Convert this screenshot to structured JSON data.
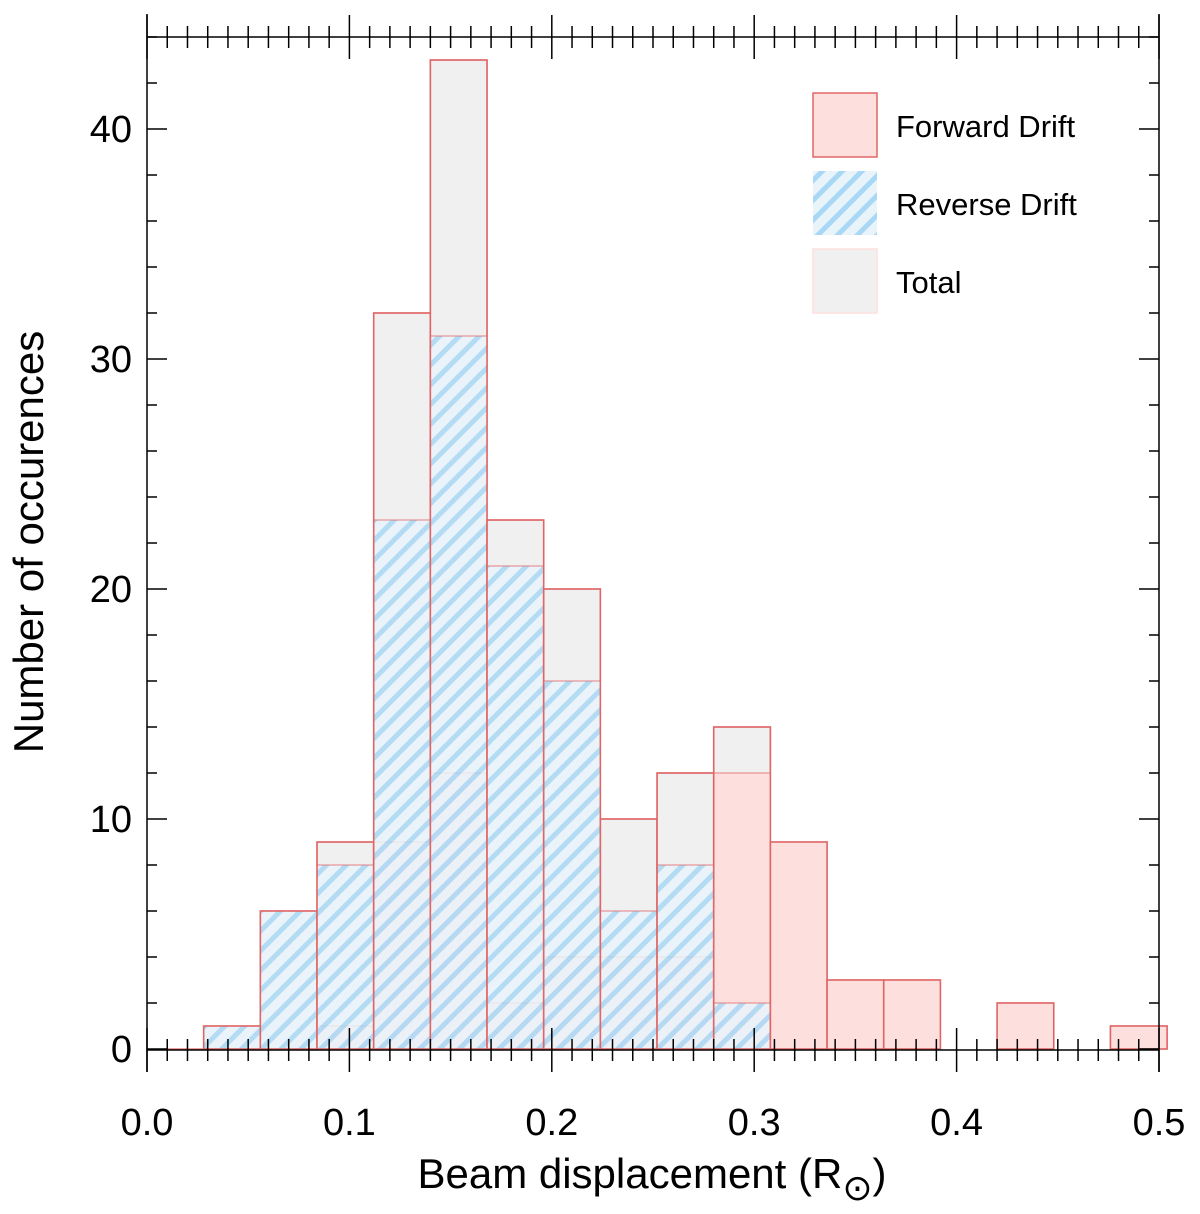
{
  "chart_data": {
    "type": "bar",
    "xlabel": "Beam displacement (R",
    "xlabel_symbol": "⊙",
    "xlabel_close": ")",
    "ylabel": "Number of occurences",
    "xlim": [
      0.0,
      0.5
    ],
    "ylim": [
      -1.0,
      45.0
    ],
    "bin_edges": [
      0.028,
      0.056,
      0.084,
      0.112,
      0.14,
      0.168,
      0.196,
      0.224,
      0.252,
      0.28,
      0.308,
      0.336,
      0.364,
      0.392,
      0.42,
      0.448,
      0.476,
      0.504
    ],
    "x_ticks": [
      "0.0",
      "0.1",
      "0.2",
      "0.3",
      "0.4",
      "0.5"
    ],
    "x_tick_values": [
      0.0,
      0.1,
      0.2,
      0.3,
      0.4,
      0.5
    ],
    "y_ticks": [
      "0",
      "10",
      "20",
      "30",
      "40"
    ],
    "y_tick_values": [
      0,
      10,
      20,
      30,
      40
    ],
    "series": [
      {
        "name": "Total",
        "values": [
          1,
          6,
          9,
          32,
          43,
          23,
          20,
          10,
          12,
          14,
          9,
          3,
          3,
          0,
          2,
          0,
          1
        ]
      },
      {
        "name": "Forward Drift",
        "values": [
          0,
          0,
          1,
          9,
          12,
          2,
          4,
          4,
          4,
          12,
          9,
          3,
          3,
          0,
          2,
          0,
          1
        ]
      },
      {
        "name": "Reverse Drift",
        "values": [
          1,
          6,
          8,
          23,
          31,
          21,
          16,
          6,
          8,
          2,
          0,
          0,
          0,
          0,
          0,
          0,
          0
        ]
      }
    ],
    "colors": {
      "total_fill": "#f0f0f0",
      "forward_fill": "#fde0de",
      "reverse_stripe": "#a8d8f5",
      "reverse_bg": "#e8f4fa",
      "bar_edge": "#e06666"
    },
    "legend": {
      "position": "top-right",
      "entries": [
        "Forward Drift",
        "Reverse Drift",
        "Total"
      ]
    },
    "grid": false
  }
}
